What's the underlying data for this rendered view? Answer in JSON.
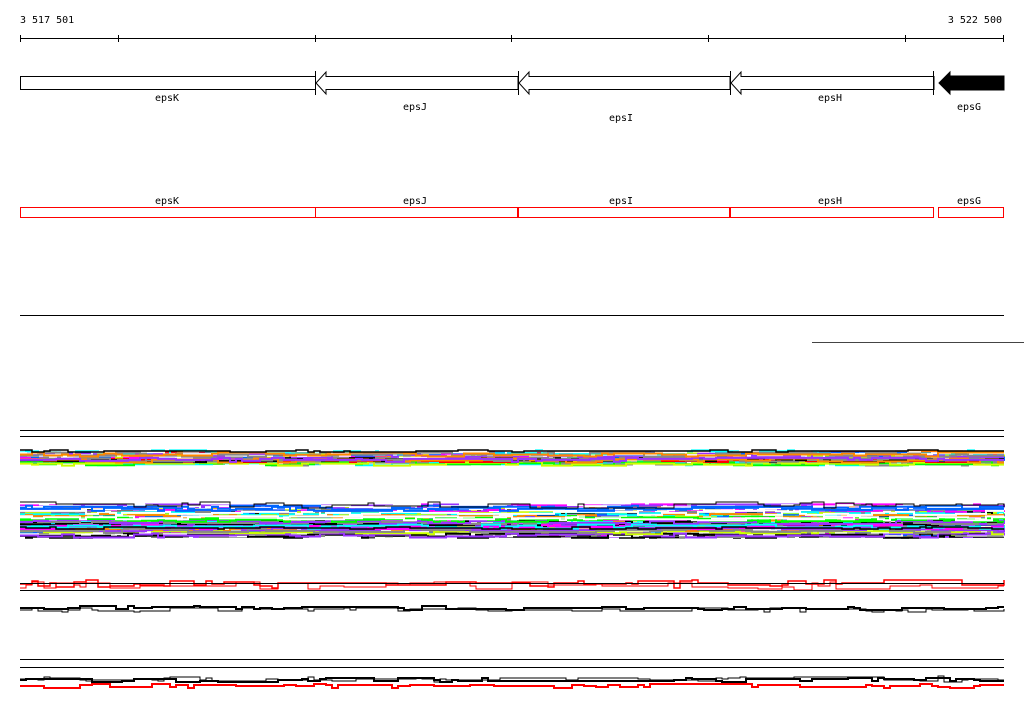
{
  "ruler": {
    "start_label": "3 517 501",
    "end_label": "3 522 500"
  },
  "genes": [
    {
      "name": "epsK",
      "strand": "-",
      "filled": false
    },
    {
      "name": "epsJ",
      "strand": "-",
      "filled": false
    },
    {
      "name": "epsI",
      "strand": "-",
      "filled": false
    },
    {
      "name": "epsH",
      "strand": "-",
      "filled": false
    },
    {
      "name": "epsG",
      "strand": "-",
      "filled": true
    }
  ],
  "features": [
    {
      "name": "epsK"
    },
    {
      "name": "epsJ"
    },
    {
      "name": "epsI"
    },
    {
      "name": "epsH"
    },
    {
      "name": "epsG"
    }
  ],
  "colors": {
    "feature_outline": "#ff0000",
    "track_palette": [
      "#ff00ff",
      "#00ffff",
      "#0066ff",
      "#00ff00",
      "#ff8800",
      "#ff0000",
      "#888888",
      "#000000",
      "#ccff00",
      "#ffffff",
      "#9933ff"
    ],
    "trace_primary": "#ff0000",
    "trace_secondary": "#000000"
  }
}
